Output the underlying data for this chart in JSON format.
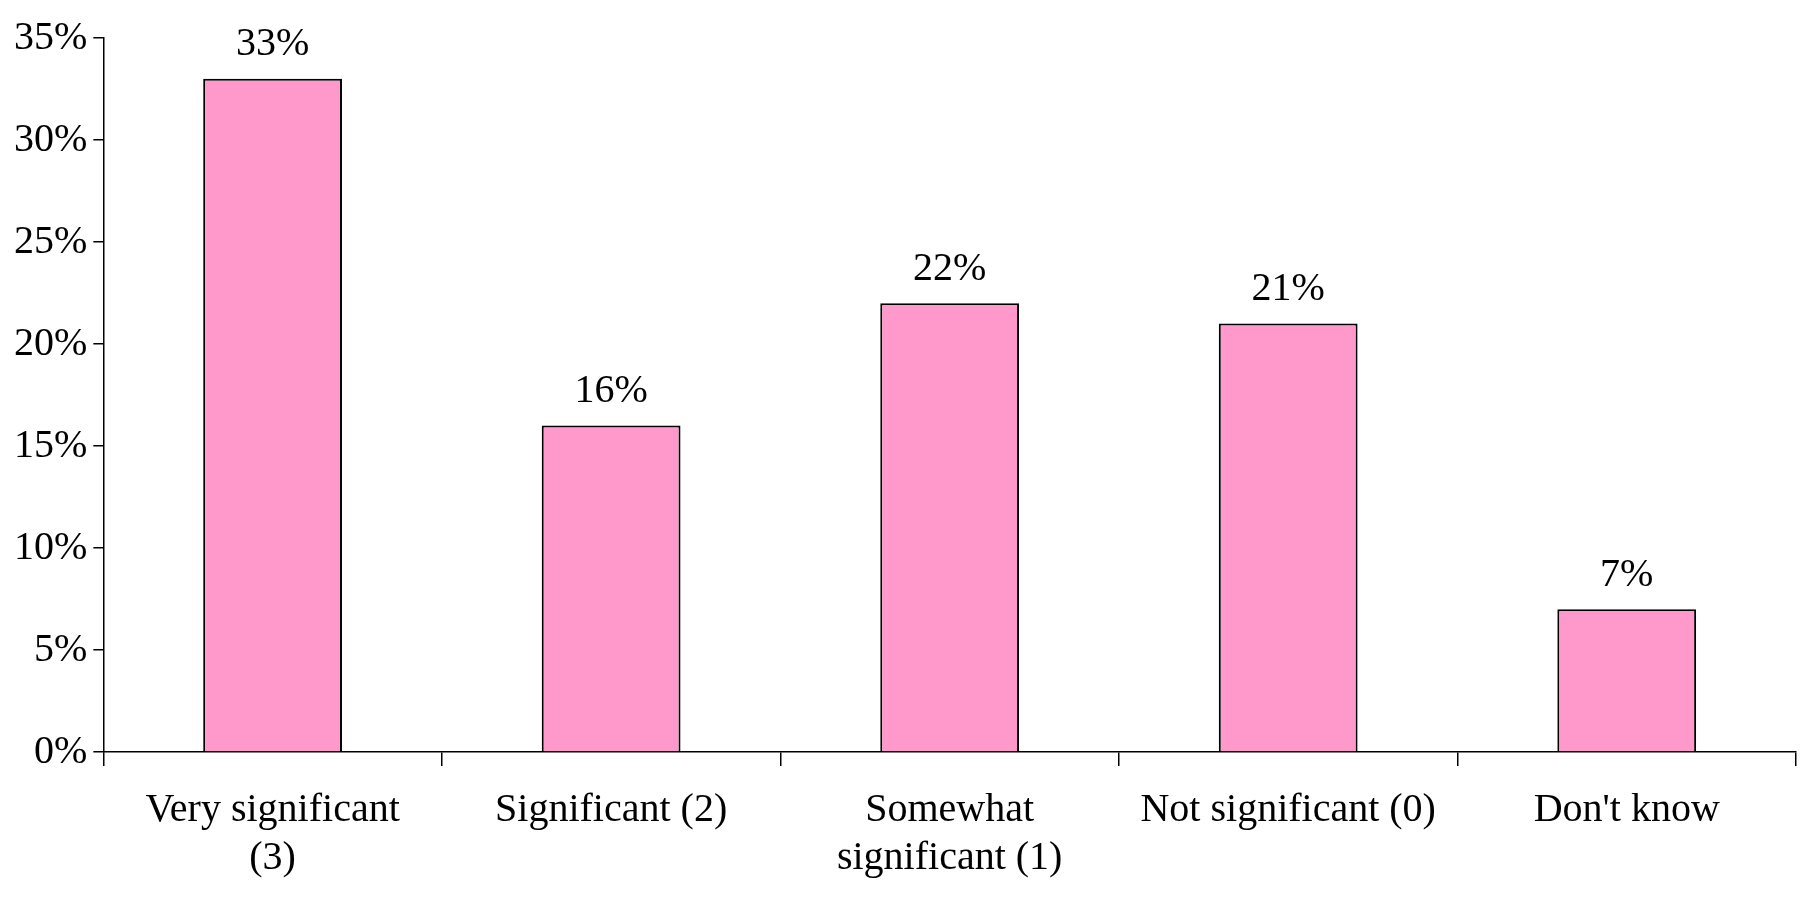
{
  "chart_data": {
    "type": "bar",
    "categories": [
      "Very significant (3)",
      "Significant (2)",
      "Somewhat significant (1)",
      "Not significant (0)",
      "Don't know"
    ],
    "values": [
      33,
      16,
      22,
      21,
      7
    ],
    "value_labels": [
      "33%",
      "16%",
      "22%",
      "21%",
      "7%"
    ],
    "color": "#ff99cc",
    "ylim": [
      0,
      35
    ],
    "yticks": [
      {
        "value": 0,
        "label": "0%"
      },
      {
        "value": 5,
        "label": "5%"
      },
      {
        "value": 10,
        "label": "10%"
      },
      {
        "value": 15,
        "label": "15%"
      },
      {
        "value": 20,
        "label": "20%"
      },
      {
        "value": 25,
        "label": "25%"
      },
      {
        "value": 30,
        "label": "30%"
      },
      {
        "value": 35,
        "label": "35%"
      }
    ],
    "grid": false,
    "legend": false
  }
}
